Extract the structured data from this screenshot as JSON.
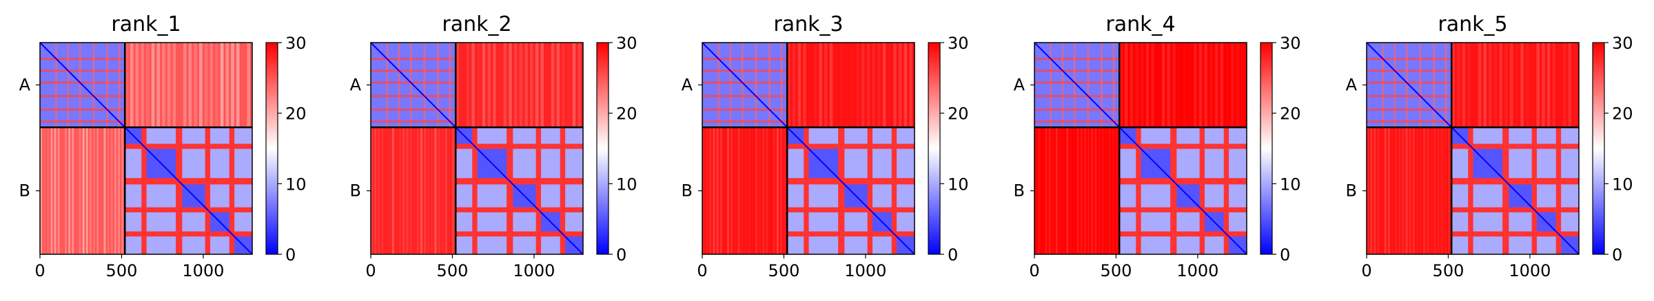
{
  "chart_data": [
    {
      "type": "heatmap",
      "title": "rank_1",
      "x_ticks": [
        0,
        500,
        1000
      ],
      "xlim": [
        0,
        1300
      ],
      "chain_labels": [
        "A",
        "B"
      ],
      "chain_boundary": 520,
      "colorbar": {
        "range": [
          0,
          30
        ],
        "ticks": [
          0,
          10,
          20,
          30
        ],
        "colors": [
          "#0000ff",
          "#ffffff",
          "#ff0000"
        ]
      },
      "off_diagonal_mean": 25
    },
    {
      "type": "heatmap",
      "title": "rank_2",
      "x_ticks": [
        0,
        500,
        1000
      ],
      "xlim": [
        0,
        1300
      ],
      "chain_labels": [
        "A",
        "B"
      ],
      "chain_boundary": 520,
      "colorbar": {
        "range": [
          0,
          30
        ],
        "ticks": [
          0,
          10,
          20,
          30
        ],
        "colors": [
          "#0000ff",
          "#ffffff",
          "#ff0000"
        ]
      },
      "off_diagonal_mean": 28
    },
    {
      "type": "heatmap",
      "title": "rank_3",
      "x_ticks": [
        0,
        500,
        1000
      ],
      "xlim": [
        0,
        1300
      ],
      "chain_labels": [
        "A",
        "B"
      ],
      "chain_boundary": 520,
      "colorbar": {
        "range": [
          0,
          30
        ],
        "ticks": [
          0,
          10,
          20,
          30
        ],
        "colors": [
          "#0000ff",
          "#ffffff",
          "#ff0000"
        ]
      },
      "off_diagonal_mean": 29
    },
    {
      "type": "heatmap",
      "title": "rank_4",
      "x_ticks": [
        0,
        500,
        1000
      ],
      "xlim": [
        0,
        1300
      ],
      "chain_labels": [
        "A",
        "B"
      ],
      "chain_boundary": 520,
      "colorbar": {
        "range": [
          0,
          30
        ],
        "ticks": [
          0,
          10,
          20,
          30
        ],
        "colors": [
          "#0000ff",
          "#ffffff",
          "#ff0000"
        ]
      },
      "off_diagonal_mean": 30
    },
    {
      "type": "heatmap",
      "title": "rank_5",
      "x_ticks": [
        0,
        500,
        1000
      ],
      "xlim": [
        0,
        1300
      ],
      "chain_labels": [
        "A",
        "B"
      ],
      "chain_boundary": 520,
      "colorbar": {
        "range": [
          0,
          30
        ],
        "ticks": [
          0,
          10,
          20,
          30
        ],
        "colors": [
          "#0000ff",
          "#ffffff",
          "#ff0000"
        ]
      },
      "off_diagonal_mean": 29
    }
  ]
}
